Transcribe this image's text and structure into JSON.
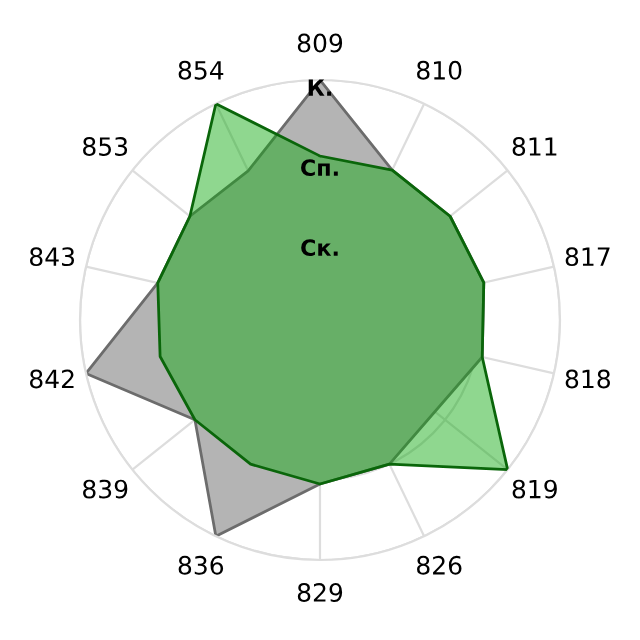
{
  "chart_data": {
    "type": "radar",
    "categories": [
      "809",
      "810",
      "811",
      "817",
      "818",
      "819",
      "826",
      "829",
      "836",
      "839",
      "842",
      "843",
      "853",
      "854"
    ],
    "series": [
      {
        "color": "#b4b4b4",
        "values": [
          3,
          2.08,
          2.08,
          2.1,
          2.08,
          null,
          2,
          2.05,
          3,
          2,
          3,
          2.08,
          2.08,
          2.07
        ]
      },
      {
        "color": "#11aa11",
        "values": [
          2.05,
          2.08,
          2.08,
          2.1,
          2.08,
          3,
          2,
          2.05,
          2,
          2,
          2.05,
          2.08,
          2.08,
          3
        ]
      }
    ],
    "ylim": [
      0,
      3
    ],
    "yticks": [
      {
        "value": 1,
        "label": "Ск."
      },
      {
        "value": 2,
        "label": "Сп."
      },
      {
        "value": 3,
        "label": "К."
      }
    ],
    "grid": true,
    "legend": false
  }
}
